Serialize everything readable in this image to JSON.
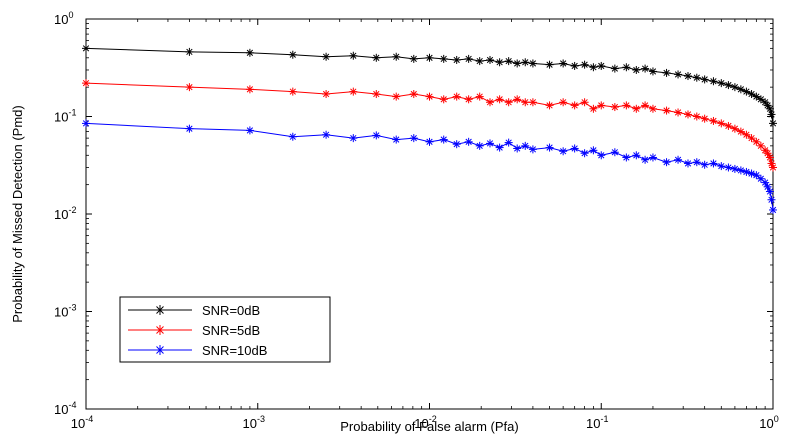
{
  "chart_data": {
    "type": "line",
    "title": "",
    "xlabel": "Probability of False alarm (Pfa)",
    "ylabel": "Probability of Missed Detection (Pmd)",
    "xscale": "log",
    "yscale": "log",
    "xlim": [
      0.0001,
      1
    ],
    "ylim": [
      0.0001,
      1
    ],
    "grid": false,
    "legend_position": "lower-left",
    "x_ticks": [
      {
        "base": "10",
        "exp": "-4"
      },
      {
        "base": "10",
        "exp": "-3"
      },
      {
        "base": "10",
        "exp": "-2"
      },
      {
        "base": "10",
        "exp": "-1"
      },
      {
        "base": "10",
        "exp": "0"
      }
    ],
    "y_ticks": [
      {
        "base": "10",
        "exp": "-4"
      },
      {
        "base": "10",
        "exp": "-3"
      },
      {
        "base": "10",
        "exp": "-2"
      },
      {
        "base": "10",
        "exp": "-1"
      },
      {
        "base": "10",
        "exp": "0"
      }
    ],
    "series": [
      {
        "name": "SNR=0dB",
        "color": "#000000",
        "marker": "asterisk",
        "x": [
          0.0001,
          0.0004,
          0.0009,
          0.0016,
          0.0025,
          0.0036,
          0.0049,
          0.0064,
          0.0081,
          0.01,
          0.0121,
          0.0144,
          0.0169,
          0.0196,
          0.0225,
          0.0256,
          0.0289,
          0.0324,
          0.0361,
          0.04,
          0.05,
          0.06,
          0.07,
          0.08,
          0.09,
          0.1,
          0.12,
          0.14,
          0.16,
          0.18,
          0.2,
          0.24,
          0.28,
          0.32,
          0.36,
          0.4,
          0.45,
          0.5,
          0.55,
          0.6,
          0.65,
          0.7,
          0.75,
          0.8,
          0.85,
          0.9,
          0.93,
          0.96,
          0.98,
          1.0
        ],
        "y": [
          0.5,
          0.46,
          0.45,
          0.43,
          0.41,
          0.42,
          0.4,
          0.41,
          0.39,
          0.4,
          0.39,
          0.38,
          0.39,
          0.37,
          0.38,
          0.36,
          0.37,
          0.35,
          0.36,
          0.35,
          0.34,
          0.35,
          0.33,
          0.34,
          0.32,
          0.33,
          0.31,
          0.32,
          0.3,
          0.31,
          0.29,
          0.28,
          0.27,
          0.26,
          0.25,
          0.24,
          0.23,
          0.22,
          0.21,
          0.2,
          0.19,
          0.18,
          0.17,
          0.16,
          0.15,
          0.14,
          0.13,
          0.12,
          0.105,
          0.085
        ]
      },
      {
        "name": "SNR=5dB",
        "color": "#ff0000",
        "marker": "asterisk",
        "x": [
          0.0001,
          0.0004,
          0.0009,
          0.0016,
          0.0025,
          0.0036,
          0.0049,
          0.0064,
          0.0081,
          0.01,
          0.0121,
          0.0144,
          0.0169,
          0.0196,
          0.0225,
          0.0256,
          0.0289,
          0.0324,
          0.0361,
          0.04,
          0.05,
          0.06,
          0.07,
          0.08,
          0.09,
          0.1,
          0.12,
          0.14,
          0.16,
          0.18,
          0.2,
          0.24,
          0.28,
          0.32,
          0.36,
          0.4,
          0.45,
          0.5,
          0.55,
          0.6,
          0.65,
          0.7,
          0.75,
          0.8,
          0.85,
          0.9,
          0.93,
          0.96,
          0.98,
          1.0
        ],
        "y": [
          0.22,
          0.2,
          0.19,
          0.18,
          0.17,
          0.18,
          0.17,
          0.16,
          0.17,
          0.16,
          0.15,
          0.16,
          0.15,
          0.16,
          0.14,
          0.15,
          0.14,
          0.15,
          0.14,
          0.14,
          0.13,
          0.14,
          0.13,
          0.14,
          0.12,
          0.13,
          0.125,
          0.13,
          0.12,
          0.13,
          0.12,
          0.115,
          0.11,
          0.105,
          0.1,
          0.095,
          0.09,
          0.085,
          0.08,
          0.075,
          0.07,
          0.065,
          0.06,
          0.055,
          0.05,
          0.045,
          0.042,
          0.038,
          0.033,
          0.03
        ]
      },
      {
        "name": "SNR=10dB",
        "color": "#0000ff",
        "marker": "asterisk",
        "x": [
          0.0001,
          0.0004,
          0.0009,
          0.0016,
          0.0025,
          0.0036,
          0.0049,
          0.0064,
          0.0081,
          0.01,
          0.0121,
          0.0144,
          0.0169,
          0.0196,
          0.0225,
          0.0256,
          0.0289,
          0.0324,
          0.0361,
          0.04,
          0.05,
          0.06,
          0.07,
          0.08,
          0.09,
          0.1,
          0.12,
          0.14,
          0.16,
          0.18,
          0.2,
          0.24,
          0.28,
          0.32,
          0.36,
          0.4,
          0.45,
          0.5,
          0.55,
          0.6,
          0.65,
          0.7,
          0.75,
          0.8,
          0.85,
          0.9,
          0.93,
          0.96,
          0.98,
          1.0
        ],
        "y": [
          0.085,
          0.075,
          0.072,
          0.062,
          0.065,
          0.06,
          0.064,
          0.058,
          0.06,
          0.055,
          0.058,
          0.052,
          0.055,
          0.05,
          0.053,
          0.048,
          0.054,
          0.047,
          0.05,
          0.046,
          0.048,
          0.044,
          0.047,
          0.042,
          0.045,
          0.04,
          0.043,
          0.038,
          0.04,
          0.036,
          0.038,
          0.034,
          0.036,
          0.033,
          0.034,
          0.032,
          0.033,
          0.031,
          0.03,
          0.029,
          0.028,
          0.027,
          0.026,
          0.025,
          0.023,
          0.021,
          0.019,
          0.017,
          0.014,
          0.011
        ]
      }
    ]
  }
}
